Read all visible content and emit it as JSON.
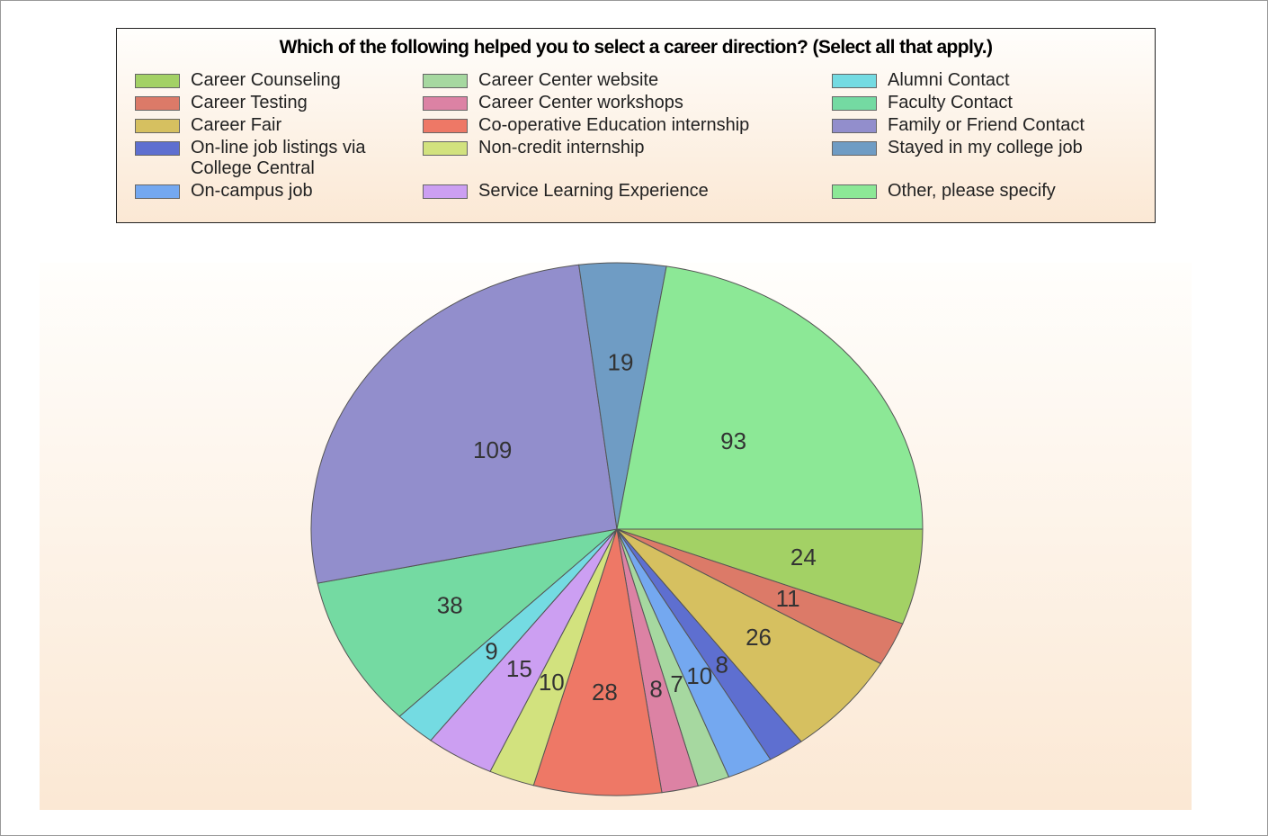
{
  "chart_data": {
    "type": "pie",
    "title": "Which of the following helped you to select a career direction? (Select all that apply.)",
    "categories": [
      "Career Counseling",
      "Career Testing",
      "Career Fair",
      "On-line job listings via College Central",
      "On-campus job",
      "Career Center website",
      "Career Center workshops",
      "Co-operative Education internship",
      "Non-credit internship",
      "Service Learning Experience",
      "Alumni Contact",
      "Faculty Contact",
      "Family or Friend Contact",
      "Stayed in my college job",
      "Other, please specify"
    ],
    "values": [
      24,
      11,
      26,
      8,
      10,
      7,
      8,
      28,
      10,
      15,
      9,
      38,
      109,
      19,
      93
    ],
    "colors": [
      "#a3d165",
      "#dc7a68",
      "#d6c060",
      "#5e6fd0",
      "#74a8f0",
      "#a6d8a0",
      "#dc82a4",
      "#ee7866",
      "#d2e27e",
      "#cc9ff2",
      "#74dbe2",
      "#74daa2",
      "#928ecc",
      "#6f9cc4",
      "#8ce896"
    ]
  }
}
